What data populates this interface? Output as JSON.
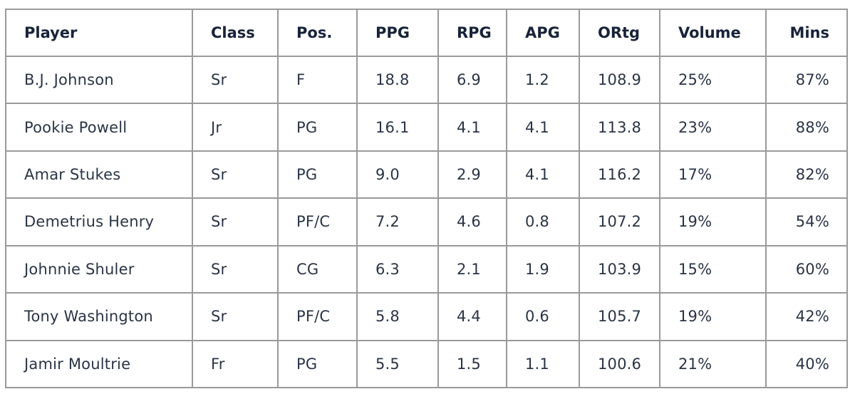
{
  "headers": [
    "Player",
    "Class",
    "Pos.",
    "PPG",
    "RPG",
    "APG",
    "ORtg",
    "Volume",
    "Mins"
  ],
  "rows": [
    [
      "B.J. Johnson",
      "Sr",
      "F",
      "18.8",
      "6.9",
      "1.2",
      "108.9",
      "25%",
      "87%"
    ],
    [
      "Pookie Powell",
      "Jr",
      "PG",
      "16.1",
      "4.1",
      "4.1",
      "113.8",
      "23%",
      "88%"
    ],
    [
      "Amar Stukes",
      "Sr",
      "PG",
      "9.0",
      "2.9",
      "4.1",
      "116.2",
      "17%",
      "82%"
    ],
    [
      "Demetrius Henry",
      "Sr",
      "PF/C",
      "7.2",
      "4.6",
      "0.8",
      "107.2",
      "19%",
      "54%"
    ],
    [
      "Johnnie Shuler",
      "Sr",
      "CG",
      "6.3",
      "2.1",
      "1.9",
      "103.9",
      "15%",
      "60%"
    ],
    [
      "Tony Washington",
      "Sr",
      "PF/C",
      "5.8",
      "4.4",
      "0.6",
      "105.7",
      "19%",
      "42%"
    ],
    [
      "Jamir Moultrie",
      "Fr",
      "PG",
      "5.5",
      "1.5",
      "1.1",
      "100.6",
      "21%",
      "40%"
    ]
  ]
}
